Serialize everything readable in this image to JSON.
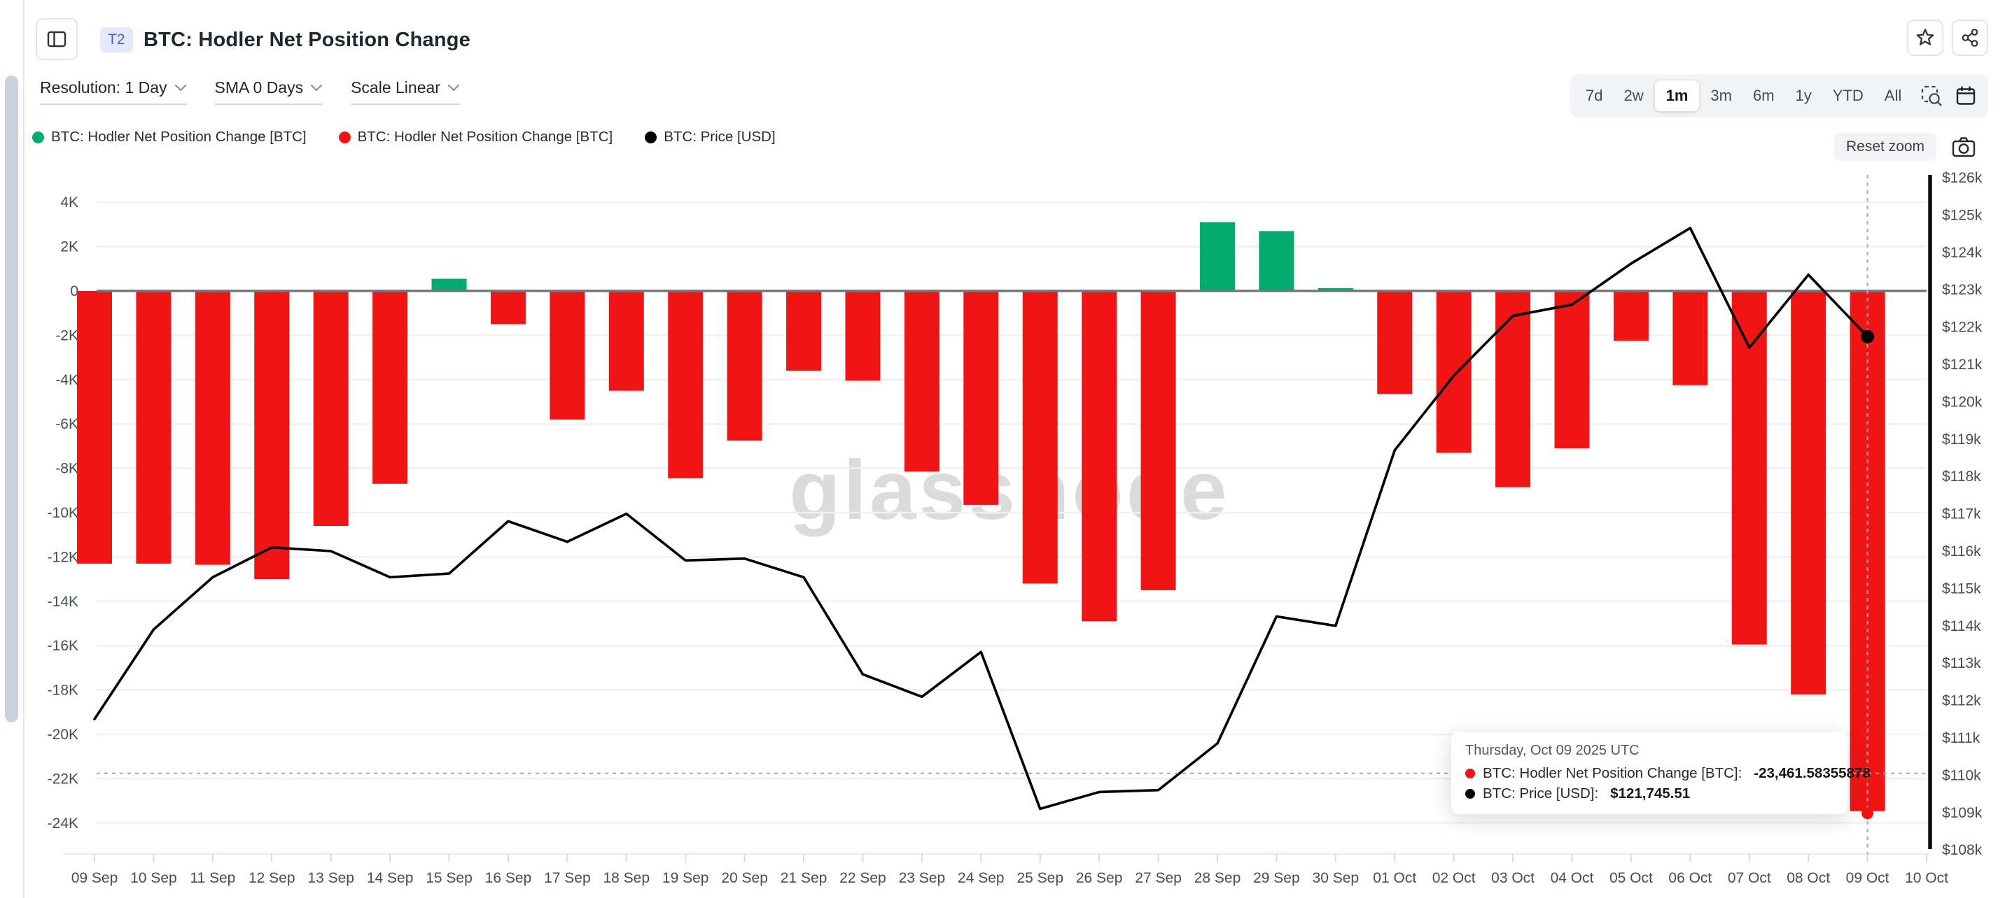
{
  "header": {
    "badge": "T2",
    "title": "BTC: Hodler Net Position Change"
  },
  "icons": {
    "sidebar_toggle": "panel-left-icon",
    "favorite": "star-icon",
    "share": "share-nodes-icon",
    "range_zoom": "magnifier-select-icon",
    "calendar": "calendar-icon",
    "screenshot": "camera-icon",
    "control_chevron": "chevron-down-icon"
  },
  "controls": [
    {
      "label": "Resolution: 1 Day"
    },
    {
      "label": "SMA 0 Days"
    },
    {
      "label": "Scale Linear"
    }
  ],
  "time_ranges": {
    "options": [
      "7d",
      "2w",
      "1m",
      "3m",
      "6m",
      "1y",
      "YTD",
      "All"
    ],
    "selected": "1m"
  },
  "buttons": {
    "reset_zoom": "Reset zoom"
  },
  "legend": [
    {
      "label": "BTC: Hodler Net Position Change [BTC]",
      "color": "#00ab6d"
    },
    {
      "label": "BTC: Hodler Net Position Change [BTC]",
      "color": "#f11414"
    },
    {
      "label": "BTC: Price [USD]",
      "color": "#000000"
    }
  ],
  "watermark": "glassnode",
  "tooltip": {
    "date": "Thursday, Oct 09 2025 UTC",
    "rows": [
      {
        "color": "#f11414",
        "label": "BTC: Hodler Net Position Change [BTC]:",
        "value": "-23,461.58355878"
      },
      {
        "color": "#000000",
        "label": "BTC: Price [USD]:",
        "value": "$121,745.51"
      }
    ]
  },
  "colors": {
    "bar_positive": "#00ab6d",
    "bar_negative": "#f11414",
    "price_line": "#000000",
    "zero_line": "#70767e",
    "gridline": "#f1f1f2",
    "axis_text": "#454d57",
    "crosshair": "#9fabb8",
    "watermark": "#d5d5d5"
  },
  "chart_data": {
    "type": "bar+line",
    "title": "BTC: Hodler Net Position Change",
    "x_labels": [
      "09 Sep",
      "10 Sep",
      "11 Sep",
      "12 Sep",
      "13 Sep",
      "14 Sep",
      "15 Sep",
      "16 Sep",
      "17 Sep",
      "18 Sep",
      "19 Sep",
      "20 Sep",
      "21 Sep",
      "22 Sep",
      "23 Sep",
      "24 Sep",
      "25 Sep",
      "26 Sep",
      "27 Sep",
      "28 Sep",
      "29 Sep",
      "30 Sep",
      "01 Oct",
      "02 Oct",
      "03 Oct",
      "04 Oct",
      "05 Oct",
      "06 Oct",
      "07 Oct",
      "08 Oct",
      "09 Oct",
      "10 Oct"
    ],
    "series": [
      {
        "name": "BTC: Hodler Net Position Change [BTC]",
        "type": "bar",
        "values": [
          -12300,
          -12300,
          -12350,
          -13000,
          -10600,
          -8700,
          550,
          -1500,
          -5800,
          -4500,
          -8450,
          -6750,
          -3600,
          -4050,
          -8150,
          -9650,
          -13200,
          -14900,
          -13500,
          3100,
          2700,
          130,
          -4650,
          -7300,
          -8850,
          -7100,
          -2250,
          -4250,
          -15950,
          -18200,
          -23461.58355878
        ]
      },
      {
        "name": "BTC: Price [USD]",
        "type": "line",
        "values": [
          111500,
          113900,
          115300,
          116100,
          116000,
          115300,
          115400,
          116800,
          116250,
          117000,
          115750,
          115800,
          115300,
          112700,
          112100,
          113300,
          109100,
          109550,
          109600,
          110850,
          114250,
          114000,
          118700,
          120700,
          122300,
          122600,
          123700,
          124650,
          121450,
          123400,
          121745.51
        ]
      }
    ],
    "left_axis": {
      "title": "Hodler Net Position Change [BTC]",
      "tick_values": [
        4000,
        2000,
        0,
        -2000,
        -4000,
        -6000,
        -8000,
        -10000,
        -12000,
        -14000,
        -16000,
        -18000,
        -20000,
        -22000,
        -24000
      ],
      "tick_labels": [
        "4K",
        "2K",
        "0",
        "-2K",
        "-4K",
        "-6K",
        "-8K",
        "-10K",
        "-12K",
        "-14K",
        "-16K",
        "-18K",
        "-20K",
        "-22K",
        "-24K"
      ],
      "range": [
        -24000,
        4000
      ]
    },
    "right_axis": {
      "title": "Price [USD]",
      "tick_values": [
        126000,
        125000,
        124000,
        123000,
        122000,
        121000,
        120000,
        119000,
        118000,
        117000,
        116000,
        115000,
        114000,
        113000,
        112000,
        111000,
        110000,
        109000,
        108000
      ],
      "tick_labels": [
        "$126k",
        "$125k",
        "$124k",
        "$123k",
        "$122k",
        "$121k",
        "$120k",
        "$119k",
        "$118k",
        "$117k",
        "$116k",
        "$115k",
        "$114k",
        "$113k",
        "$112k",
        "$111k",
        "$110k",
        "$109k",
        "$108k"
      ],
      "range": [
        108000,
        126000
      ]
    },
    "grid": true,
    "legend_position": "top-left",
    "hover": {
      "index": 30,
      "h_line_price": 110050
    }
  }
}
